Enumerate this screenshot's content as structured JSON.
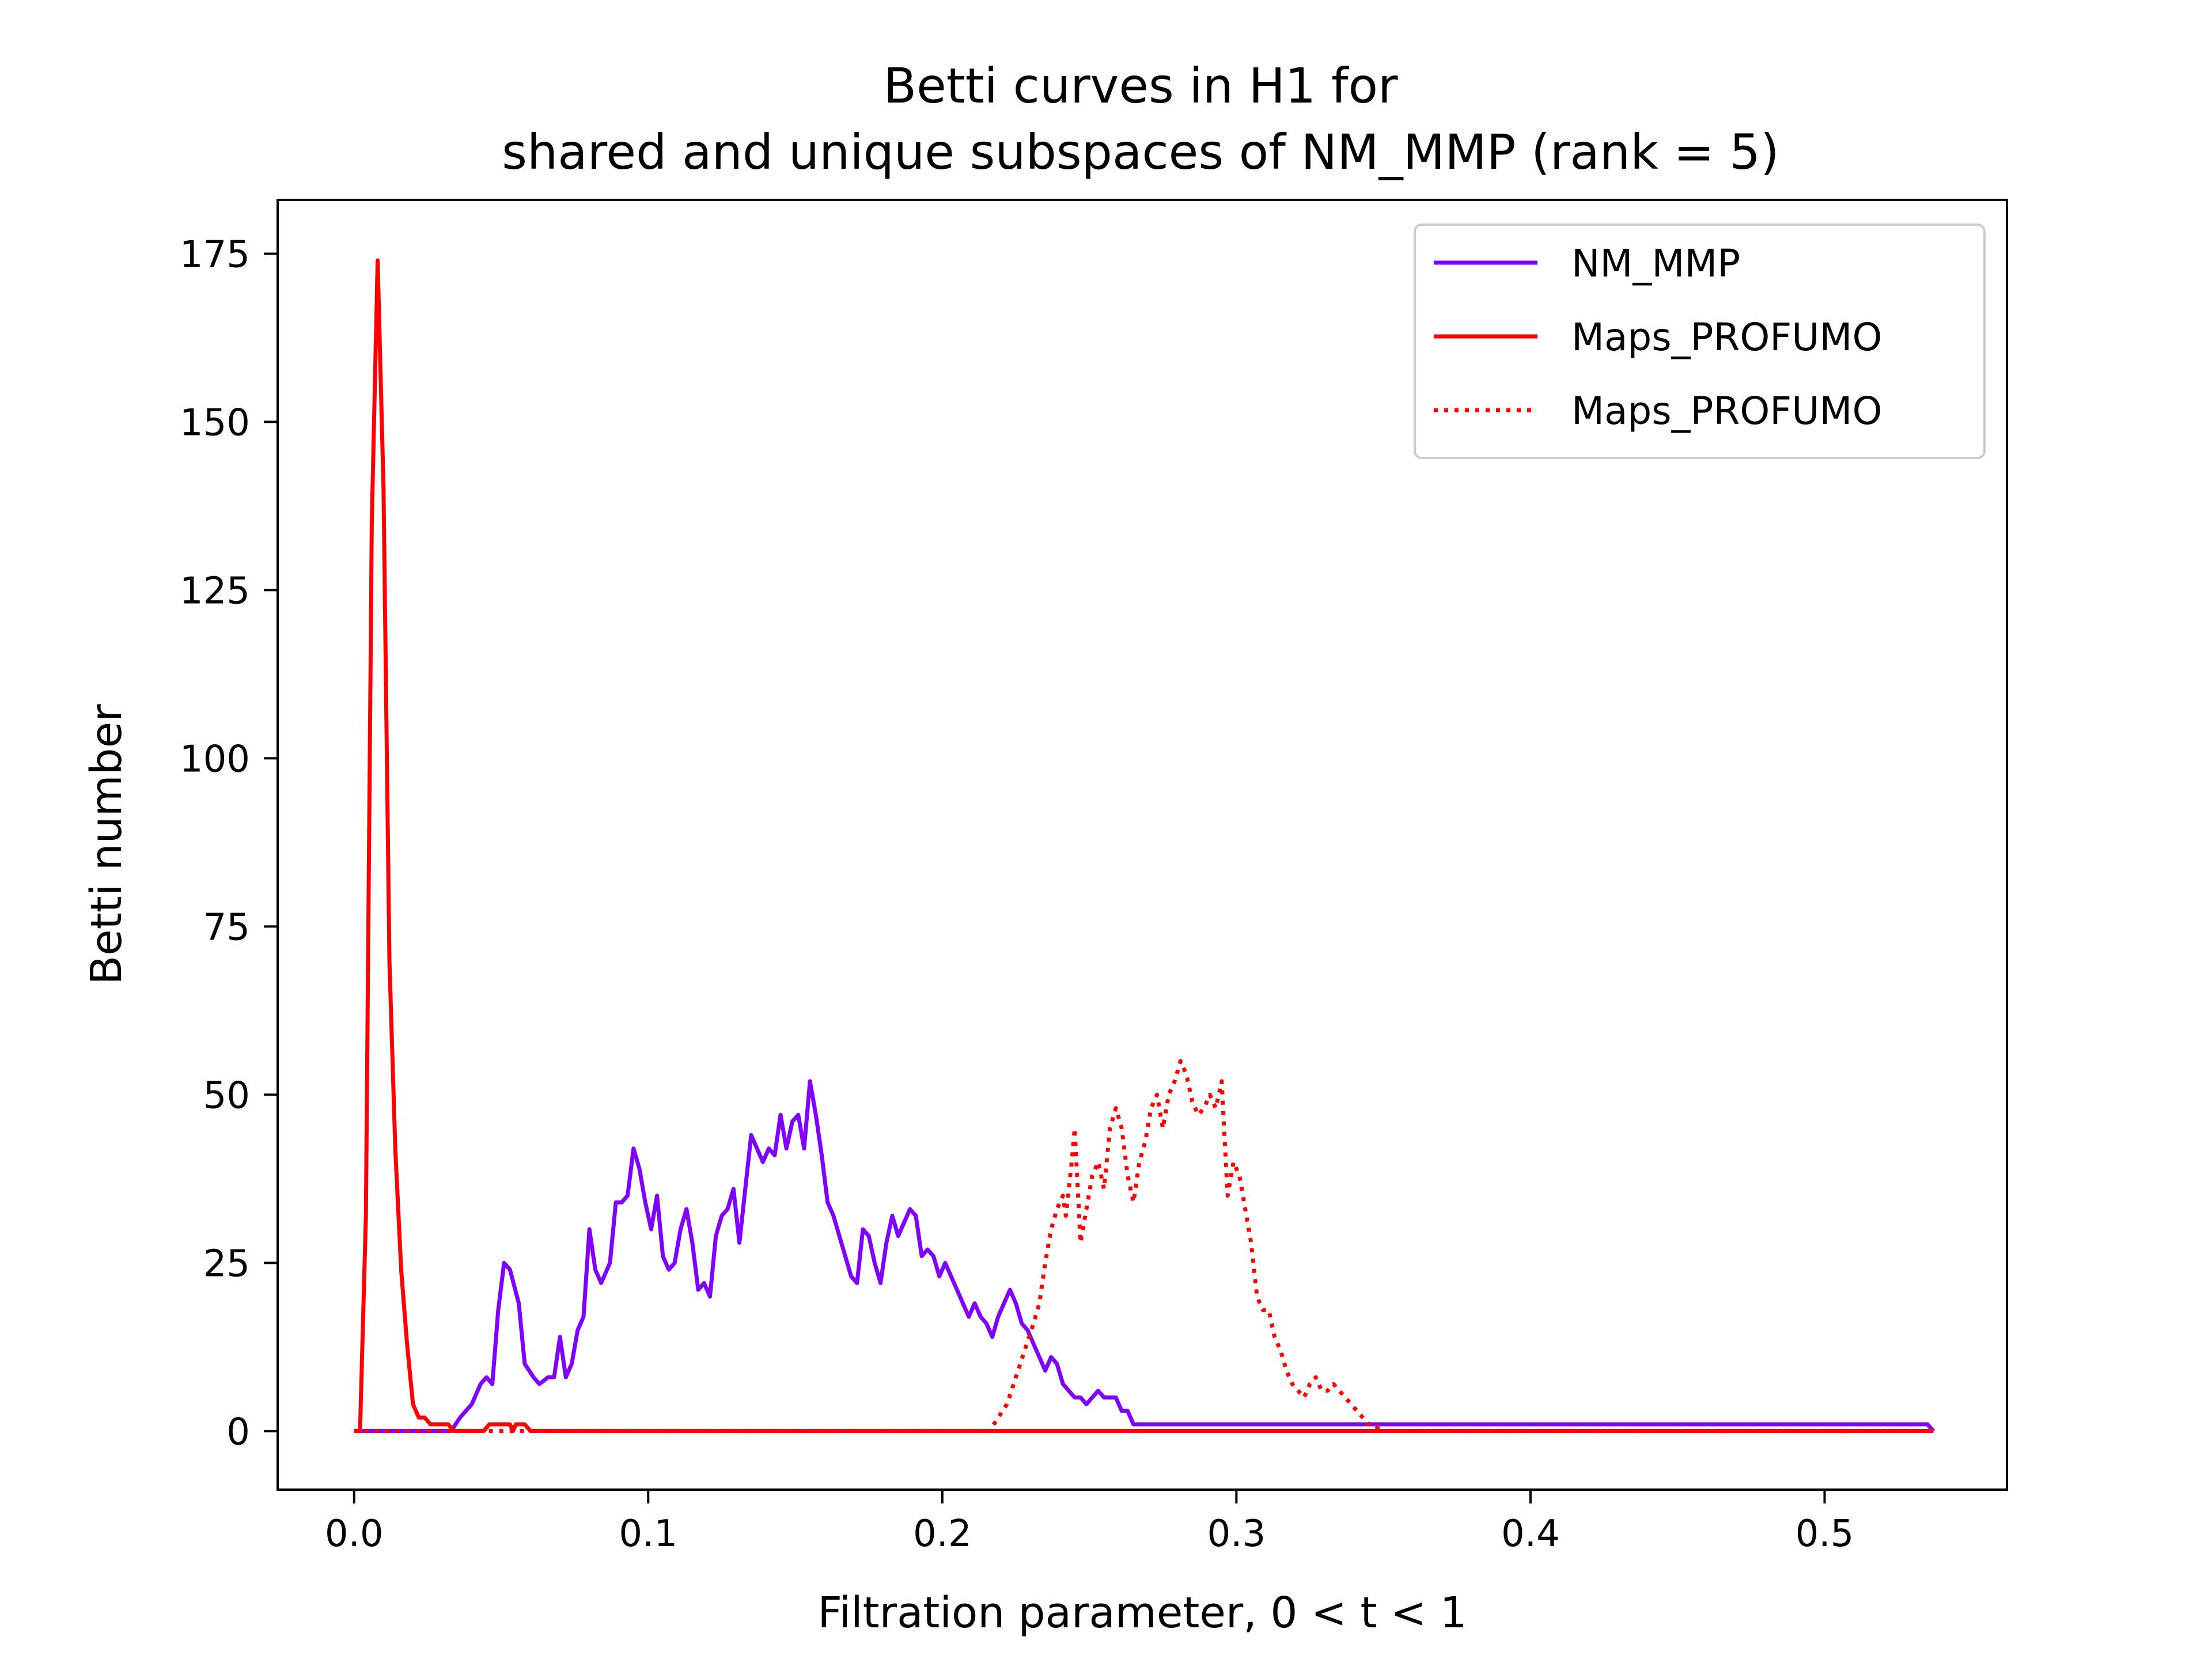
{
  "chart_data": {
    "type": "line",
    "title_line1": "Betti curves in H1 for",
    "title_line2": "shared and unique subspaces of NM_MMP (rank = 5)",
    "xlabel": "Filtration parameter, 0 < t < 1",
    "ylabel": "Betti number",
    "xlim": [
      -0.026,
      0.562
    ],
    "ylim": [
      -8.7,
      183
    ],
    "x_ticks": [
      0.0,
      0.1,
      0.2,
      0.3,
      0.4,
      0.5
    ],
    "x_tick_labels": [
      "0.0",
      "0.1",
      "0.2",
      "0.3",
      "0.4",
      "0.5"
    ],
    "y_ticks": [
      0,
      25,
      50,
      75,
      100,
      125,
      150,
      175
    ],
    "y_tick_labels": [
      "0",
      "25",
      "50",
      "75",
      "100",
      "125",
      "150",
      "175"
    ],
    "grid": false,
    "legend_position": "top-right",
    "series": [
      {
        "name": "NM_MMP",
        "color": "#7f00ff",
        "style": "solid",
        "points": [
          [
            0,
            0
          ],
          [
            0.033,
            0
          ],
          [
            0.036,
            2
          ],
          [
            0.04,
            4
          ],
          [
            0.043,
            7
          ],
          [
            0.045,
            8
          ],
          [
            0.047,
            7
          ],
          [
            0.049,
            18
          ],
          [
            0.051,
            25
          ],
          [
            0.053,
            24
          ],
          [
            0.056,
            19
          ],
          [
            0.058,
            10
          ],
          [
            0.061,
            8
          ],
          [
            0.063,
            7
          ],
          [
            0.066,
            8
          ],
          [
            0.068,
            8
          ],
          [
            0.07,
            14
          ],
          [
            0.072,
            8
          ],
          [
            0.074,
            10
          ],
          [
            0.076,
            15
          ],
          [
            0.078,
            17
          ],
          [
            0.08,
            30
          ],
          [
            0.082,
            24
          ],
          [
            0.084,
            22
          ],
          [
            0.087,
            25
          ],
          [
            0.089,
            34
          ],
          [
            0.091,
            34
          ],
          [
            0.093,
            35
          ],
          [
            0.095,
            42
          ],
          [
            0.097,
            39
          ],
          [
            0.099,
            34
          ],
          [
            0.101,
            30
          ],
          [
            0.103,
            35
          ],
          [
            0.105,
            26
          ],
          [
            0.107,
            24
          ],
          [
            0.109,
            25
          ],
          [
            0.111,
            30
          ],
          [
            0.113,
            33
          ],
          [
            0.115,
            28
          ],
          [
            0.117,
            21
          ],
          [
            0.119,
            22
          ],
          [
            0.121,
            20
          ],
          [
            0.123,
            29
          ],
          [
            0.125,
            32
          ],
          [
            0.127,
            33
          ],
          [
            0.129,
            36
          ],
          [
            0.131,
            28
          ],
          [
            0.133,
            36
          ],
          [
            0.135,
            44
          ],
          [
            0.137,
            42
          ],
          [
            0.139,
            40
          ],
          [
            0.141,
            42
          ],
          [
            0.143,
            41
          ],
          [
            0.145,
            47
          ],
          [
            0.147,
            42
          ],
          [
            0.149,
            46
          ],
          [
            0.151,
            47
          ],
          [
            0.153,
            42
          ],
          [
            0.155,
            52
          ],
          [
            0.157,
            47
          ],
          [
            0.159,
            41
          ],
          [
            0.161,
            34
          ],
          [
            0.163,
            32
          ],
          [
            0.165,
            29
          ],
          [
            0.167,
            26
          ],
          [
            0.169,
            23
          ],
          [
            0.171,
            22
          ],
          [
            0.173,
            30
          ],
          [
            0.175,
            29
          ],
          [
            0.177,
            25
          ],
          [
            0.179,
            22
          ],
          [
            0.181,
            28
          ],
          [
            0.183,
            32
          ],
          [
            0.185,
            29
          ],
          [
            0.187,
            31
          ],
          [
            0.189,
            33
          ],
          [
            0.191,
            32
          ],
          [
            0.193,
            26
          ],
          [
            0.195,
            27
          ],
          [
            0.197,
            26
          ],
          [
            0.199,
            23
          ],
          [
            0.201,
            25
          ],
          [
            0.203,
            23
          ],
          [
            0.206,
            20
          ],
          [
            0.209,
            17
          ],
          [
            0.211,
            19
          ],
          [
            0.213,
            17
          ],
          [
            0.215,
            16
          ],
          [
            0.217,
            14
          ],
          [
            0.219,
            17
          ],
          [
            0.221,
            19
          ],
          [
            0.223,
            21
          ],
          [
            0.225,
            19
          ],
          [
            0.227,
            16
          ],
          [
            0.229,
            15
          ],
          [
            0.231,
            13
          ],
          [
            0.233,
            11
          ],
          [
            0.235,
            9
          ],
          [
            0.237,
            11
          ],
          [
            0.239,
            10
          ],
          [
            0.241,
            7
          ],
          [
            0.243,
            6
          ],
          [
            0.245,
            5
          ],
          [
            0.247,
            5
          ],
          [
            0.249,
            4
          ],
          [
            0.251,
            5
          ],
          [
            0.253,
            6
          ],
          [
            0.255,
            5
          ],
          [
            0.257,
            5
          ],
          [
            0.259,
            5
          ],
          [
            0.261,
            3
          ],
          [
            0.263,
            3
          ],
          [
            0.265,
            1
          ],
          [
            0.535,
            1
          ],
          [
            0.537,
            0
          ]
        ]
      },
      {
        "name": "Maps_PROFUMO",
        "color": "#ff0000",
        "style": "solid",
        "points": [
          [
            0,
            0
          ],
          [
            0.002,
            0
          ],
          [
            0.004,
            32
          ],
          [
            0.006,
            135
          ],
          [
            0.008,
            174
          ],
          [
            0.01,
            140
          ],
          [
            0.012,
            70
          ],
          [
            0.014,
            42
          ],
          [
            0.016,
            24
          ],
          [
            0.018,
            13
          ],
          [
            0.02,
            4
          ],
          [
            0.022,
            2
          ],
          [
            0.024,
            2
          ],
          [
            0.026,
            1
          ],
          [
            0.028,
            1
          ],
          [
            0.03,
            1
          ],
          [
            0.032,
            1
          ],
          [
            0.034,
            0
          ],
          [
            0.044,
            0
          ],
          [
            0.046,
            1
          ],
          [
            0.053,
            1
          ],
          [
            0.054,
            0
          ],
          [
            0.055,
            1
          ],
          [
            0.058,
            1
          ],
          [
            0.06,
            0
          ],
          [
            0.537,
            0
          ]
        ]
      },
      {
        "name": "Maps_PROFUMO",
        "color": "#ff0000",
        "style": "dotted",
        "points": [
          [
            0,
            0
          ],
          [
            0.216,
            0
          ],
          [
            0.219,
            2
          ],
          [
            0.222,
            4
          ],
          [
            0.225,
            8
          ],
          [
            0.228,
            12
          ],
          [
            0.231,
            16
          ],
          [
            0.233,
            19
          ],
          [
            0.235,
            25
          ],
          [
            0.237,
            30
          ],
          [
            0.239,
            33
          ],
          [
            0.241,
            35
          ],
          [
            0.242,
            32
          ],
          [
            0.244,
            40
          ],
          [
            0.245,
            45
          ],
          [
            0.247,
            28
          ],
          [
            0.249,
            33
          ],
          [
            0.251,
            38
          ],
          [
            0.253,
            40
          ],
          [
            0.255,
            36
          ],
          [
            0.257,
            45
          ],
          [
            0.259,
            48
          ],
          [
            0.261,
            45
          ],
          [
            0.263,
            38
          ],
          [
            0.265,
            34
          ],
          [
            0.267,
            40
          ],
          [
            0.269,
            43
          ],
          [
            0.271,
            48
          ],
          [
            0.273,
            50
          ],
          [
            0.275,
            45
          ],
          [
            0.277,
            50
          ],
          [
            0.279,
            52
          ],
          [
            0.281,
            55
          ],
          [
            0.283,
            53
          ],
          [
            0.285,
            49
          ],
          [
            0.287,
            47
          ],
          [
            0.289,
            48
          ],
          [
            0.291,
            50
          ],
          [
            0.293,
            48
          ],
          [
            0.295,
            52
          ],
          [
            0.297,
            35
          ],
          [
            0.299,
            40
          ],
          [
            0.301,
            38
          ],
          [
            0.303,
            33
          ],
          [
            0.305,
            28
          ],
          [
            0.307,
            20
          ],
          [
            0.309,
            18
          ],
          [
            0.311,
            18
          ],
          [
            0.313,
            14
          ],
          [
            0.315,
            12
          ],
          [
            0.317,
            9
          ],
          [
            0.319,
            7
          ],
          [
            0.321,
            6
          ],
          [
            0.323,
            5
          ],
          [
            0.325,
            7
          ],
          [
            0.327,
            8
          ],
          [
            0.329,
            6
          ],
          [
            0.331,
            6
          ],
          [
            0.333,
            7
          ],
          [
            0.335,
            6
          ],
          [
            0.337,
            5
          ],
          [
            0.339,
            4
          ],
          [
            0.341,
            3
          ],
          [
            0.343,
            2
          ],
          [
            0.345,
            1
          ],
          [
            0.347,
            1
          ],
          [
            0.349,
            0
          ],
          [
            0.351,
            0
          ],
          [
            0.537,
            0
          ]
        ]
      }
    ]
  }
}
